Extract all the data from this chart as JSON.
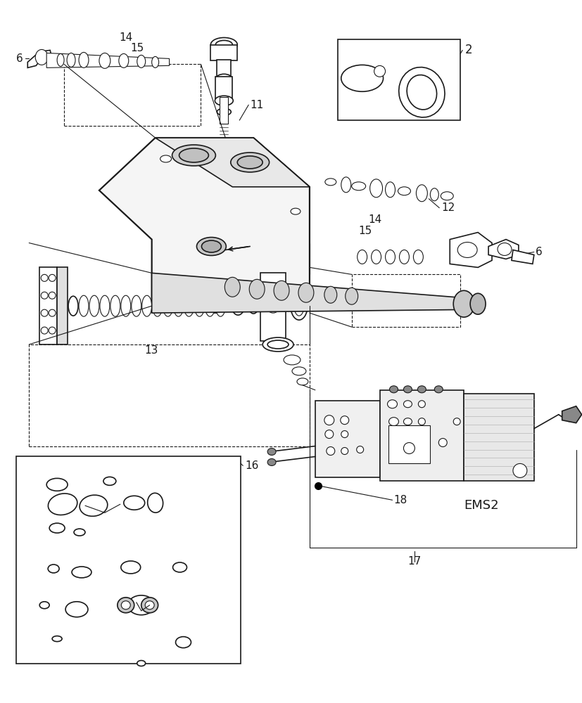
{
  "bg": "#ffffff",
  "lc": "#1a1a1a",
  "fig_w": 8.28,
  "fig_h": 10.0,
  "dpi": 100
}
